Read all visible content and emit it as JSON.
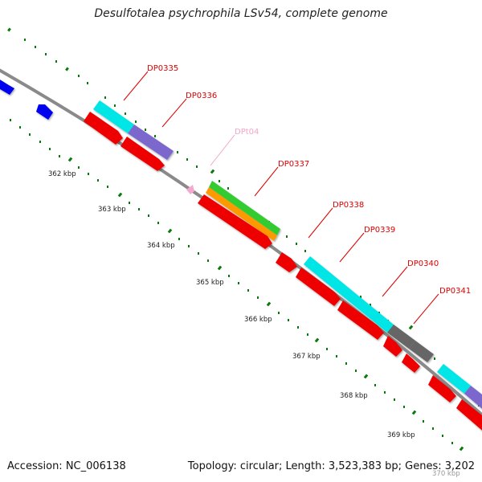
{
  "title": "Desulfotalea psychrophila LSv54, complete genome",
  "accession": "Accession: NC_006138",
  "topology": "Topology: circular; Length: 3,523,383 bp; Genes: 3,202",
  "scale_labels": [
    "362 kbp",
    "363 kbp",
    "364 kbp",
    "365 kbp",
    "366 kbp",
    "367 kbp",
    "368 kbp",
    "369 kbp",
    "370 kbp"
  ],
  "gene_labels": [
    {
      "name": "DP0335",
      "color": "#dd0000"
    },
    {
      "name": "DP0336",
      "color": "#dd0000"
    },
    {
      "name": "DPt04",
      "color": "#f4a6c6"
    },
    {
      "name": "DP0337",
      "color": "#dd0000"
    },
    {
      "name": "DP0338",
      "color": "#dd0000"
    },
    {
      "name": "DP0339",
      "color": "#dd0000"
    },
    {
      "name": "DP0340",
      "color": "#dd0000"
    },
    {
      "name": "DP0341",
      "color": "#dd0000"
    }
  ],
  "colors": {
    "backbone": "#8a8a8a",
    "ticks": "#0a7a0a",
    "cds": "#ee0000",
    "cyan": "#00e5e5",
    "purple": "#7b68cc",
    "green": "#33cc33",
    "orange": "#ff9900",
    "gray": "#666666",
    "blue": "#0000ee",
    "trna": "#f7a8d0"
  }
}
